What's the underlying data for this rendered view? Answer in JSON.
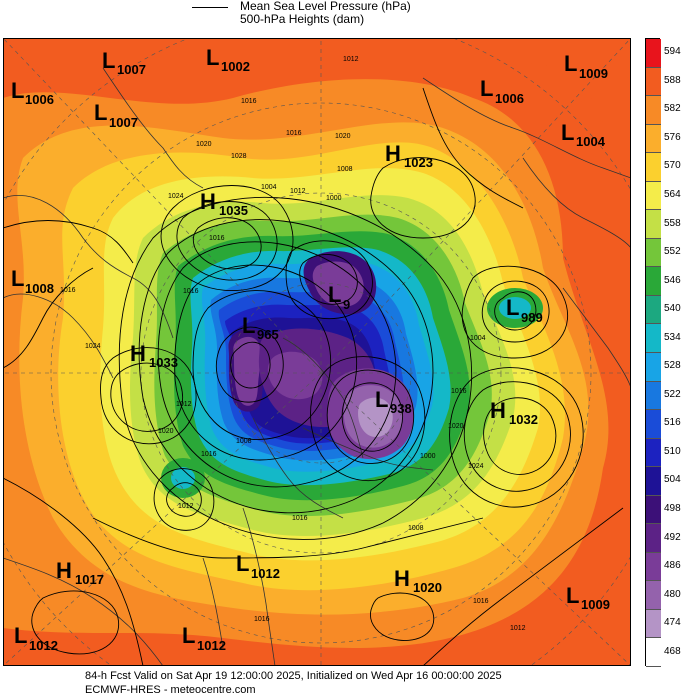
{
  "legend": {
    "line_title": "Mean Sea Level Pressure (hPa)",
    "fill_title": "500-hPa Heights (dam)"
  },
  "colorbar": {
    "levels": [
      {
        "value": "594",
        "color": "#e8141c"
      },
      {
        "value": "588",
        "color": "#f25c20"
      },
      {
        "value": "582",
        "color": "#f78a26"
      },
      {
        "value": "576",
        "color": "#fbae2c"
      },
      {
        "value": "570",
        "color": "#fbd02e"
      },
      {
        "value": "564",
        "color": "#f4ec4a"
      },
      {
        "value": "558",
        "color": "#c4e046"
      },
      {
        "value": "552",
        "color": "#74c63a"
      },
      {
        "value": "546",
        "color": "#2aa838"
      },
      {
        "value": "540",
        "color": "#1ca880"
      },
      {
        "value": "534",
        "color": "#14b8c8"
      },
      {
        "value": "528",
        "color": "#18a4e6"
      },
      {
        "value": "522",
        "color": "#1878e0"
      },
      {
        "value": "516",
        "color": "#1a4cd8"
      },
      {
        "value": "510",
        "color": "#1c22c0"
      },
      {
        "value": "504",
        "color": "#1e1296"
      },
      {
        "value": "498",
        "color": "#3c1078"
      },
      {
        "value": "492",
        "color": "#5c2286"
      },
      {
        "value": "486",
        "color": "#7a3c98"
      },
      {
        "value": "480",
        "color": "#9462ac"
      },
      {
        "value": "474",
        "color": "#b494c6"
      },
      {
        "value": "468",
        "color": "#ffffff"
      }
    ]
  },
  "pressure_centers": [
    {
      "type": "L",
      "value": "1007",
      "name": "low-1007-north"
    },
    {
      "type": "L",
      "value": "1002",
      "name": "low-1002"
    },
    {
      "type": "L",
      "value": "1009",
      "name": "low-1009-ne"
    },
    {
      "type": "L",
      "value": "1006",
      "name": "low-1006-nw"
    },
    {
      "type": "L",
      "value": "1007",
      "name": "low-1007-west"
    },
    {
      "type": "L",
      "value": "1006",
      "name": "low-1006-ne"
    },
    {
      "type": "L",
      "value": "1004",
      "name": "low-1004"
    },
    {
      "type": "H",
      "value": "1023",
      "name": "high-1023"
    },
    {
      "type": "H",
      "value": "1035",
      "name": "high-1035"
    },
    {
      "type": "L",
      "value": "1008",
      "name": "low-1008"
    },
    {
      "type": "L",
      "value": "989",
      "name": "low-989"
    },
    {
      "type": "H",
      "value": "1033",
      "name": "high-1033"
    },
    {
      "type": "L",
      "value": "965",
      "name": "low-965"
    },
    {
      "type": "L",
      "value": "9",
      "name": "low-central"
    },
    {
      "type": "L",
      "value": "938",
      "name": "low-938"
    },
    {
      "type": "H",
      "value": "1032",
      "name": "high-1032"
    },
    {
      "type": "H",
      "value": "1017",
      "name": "high-1017"
    },
    {
      "type": "L",
      "value": "1012",
      "name": "low-1012-center"
    },
    {
      "type": "H",
      "value": "1020",
      "name": "high-1020"
    },
    {
      "type": "L",
      "value": "1009",
      "name": "low-1009-se"
    },
    {
      "type": "L",
      "value": "1012",
      "name": "low-1012-sw"
    },
    {
      "type": "L",
      "value": "1012",
      "name": "low-1012-south"
    }
  ],
  "isobar_labels": [
    "1012",
    "1016",
    "1020",
    "1016",
    "1024",
    "1028",
    "1016",
    "1020",
    "1008",
    "1012",
    "1000",
    "1004",
    "1016",
    "1024",
    "1016",
    "1012",
    "1020",
    "1016",
    "1008",
    "1012",
    "1016",
    "1008",
    "1004",
    "1016",
    "1020",
    "1024",
    "1000",
    "1016",
    "1016",
    "1012"
  ],
  "footer": {
    "line1": "84-h Fcst Valid on Sat Apr 19 12:00:00 2025, Initialized on Wed Apr 16 00:00:00 2025",
    "line2": "ECMWF-HRES  - meteocentre.com"
  }
}
